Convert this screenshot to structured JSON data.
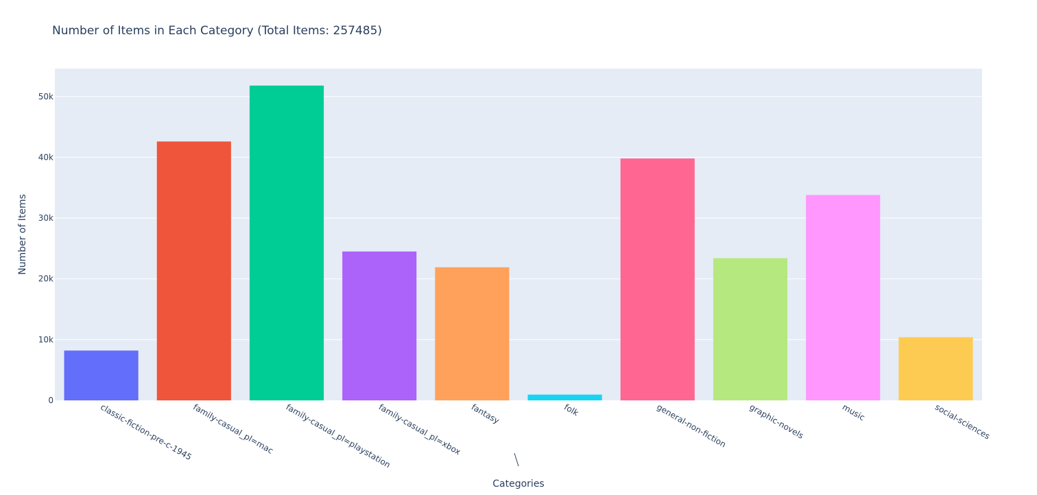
{
  "chart_data": {
    "type": "bar",
    "title": "Number of Items in Each Category (Total Items: 257485)",
    "xlabel": "Categories",
    "ylabel": "Number of Items",
    "categories": [
      "classic-fiction-pre-c-1945",
      "family-casual_pl=mac",
      "family-casual_pl=playstation",
      "family-casual_pl=xbox",
      "fantasy",
      "folk",
      "general-non-fiction",
      "graphic-novels",
      "music",
      "social-sciences"
    ],
    "values": [
      8200,
      42600,
      51800,
      24500,
      21900,
      950,
      39800,
      23400,
      33800,
      10400
    ],
    "colors": [
      "#636efa",
      "#EF553B",
      "#00cc96",
      "#ab63fa",
      "#FFA15A",
      "#19d3f3",
      "#FF6692",
      "#B6E880",
      "#FF97FF",
      "#FECB52"
    ],
    "ylim": [
      0,
      54600
    ],
    "yticks": [
      0,
      10000,
      20000,
      30000,
      40000,
      50000
    ],
    "ytick_labels": [
      "0",
      "10k",
      "20k",
      "30k",
      "40k",
      "50k"
    ],
    "grid": true,
    "plot_bgcolor": "#e5ecf6"
  }
}
